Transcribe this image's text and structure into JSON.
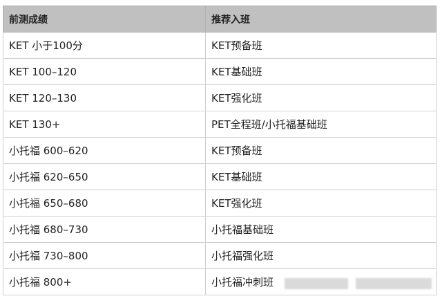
{
  "table": {
    "headers": [
      "前测成绩",
      "推荐入班"
    ],
    "rows": [
      [
        "KET 小于100分",
        "KET预备班"
      ],
      [
        "KET 100–120",
        "KET基础班"
      ],
      [
        "KET 120–130",
        "KET强化班"
      ],
      [
        "KET 130+",
        "PET全程班/小托福基础班"
      ],
      [
        "小托福 600–620",
        "KET预备班"
      ],
      [
        "小托福 620–650",
        "KET基础班"
      ],
      [
        "小托福 650–680",
        "KET强化班"
      ],
      [
        "小托福 680–730",
        "小托福基础班"
      ],
      [
        "小托福 730–800",
        "小托福强化班"
      ],
      [
        "小托福 800+",
        "小托福冲刺班"
      ]
    ]
  }
}
